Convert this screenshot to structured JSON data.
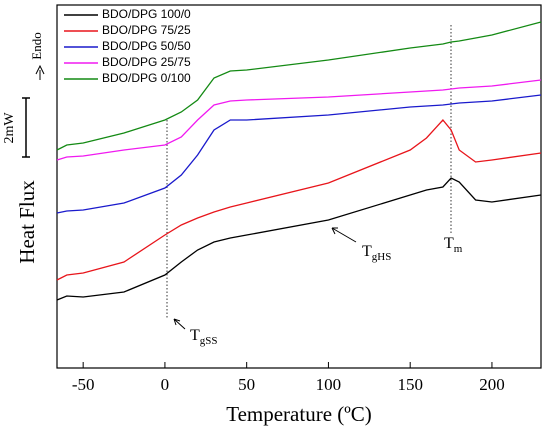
{
  "chart_data": {
    "type": "line",
    "xlabel": "Temperature (ºC)",
    "ylabel": "Heat Flux",
    "xlim": [
      -66,
      230
    ],
    "xticks": [
      -50,
      0,
      50,
      100,
      150,
      200
    ],
    "ylim": [
      0,
      363
    ],
    "x": [
      -66,
      -60,
      -50,
      -25,
      0,
      10,
      20,
      30,
      40,
      50,
      100,
      150,
      160,
      170,
      175,
      180,
      190,
      200,
      230
    ],
    "series": [
      {
        "name": "BDO/DPG 100/0",
        "color": "#000000",
        "values": [
          68,
          72,
          71,
          76,
          93,
          106,
          118,
          126,
          130,
          133,
          148,
          173,
          178,
          181,
          190,
          186,
          168,
          166,
          173
        ]
      },
      {
        "name": "BDO/DPG 75/25",
        "color": "#e8151b",
        "values": [
          88,
          93,
          95,
          106,
          133,
          143,
          150,
          156,
          161,
          165,
          185,
          218,
          230,
          248,
          238,
          218,
          206,
          208,
          215
        ]
      },
      {
        "name": "BDO/DPG 50/50",
        "color": "#1a1acc",
        "values": [
          155,
          157,
          158,
          165,
          180,
          193,
          213,
          238,
          248,
          248,
          253,
          261,
          262,
          263,
          264,
          265,
          266,
          267,
          273
        ]
      },
      {
        "name": "BDO/DPG 25/75",
        "color": "#f01af0",
        "values": [
          208,
          211,
          212,
          218,
          223,
          231,
          248,
          263,
          267,
          268,
          271,
          276,
          277,
          278,
          279,
          280,
          281,
          282,
          288
        ]
      },
      {
        "name": "BDO/DPG 0/100",
        "color": "#148a14",
        "values": [
          218,
          223,
          225,
          235,
          248,
          256,
          268,
          290,
          297,
          298,
          308,
          320,
          322,
          324,
          326,
          327,
          330,
          333,
          346
        ]
      }
    ],
    "annotations": {
      "endo": "Endo",
      "scale": "2mW",
      "tgss": {
        "text": "T",
        "sub": "gSS"
      },
      "tghs": {
        "text": "T",
        "sub": "gHS"
      },
      "tm": {
        "text": "T",
        "sub": "m"
      }
    }
  }
}
